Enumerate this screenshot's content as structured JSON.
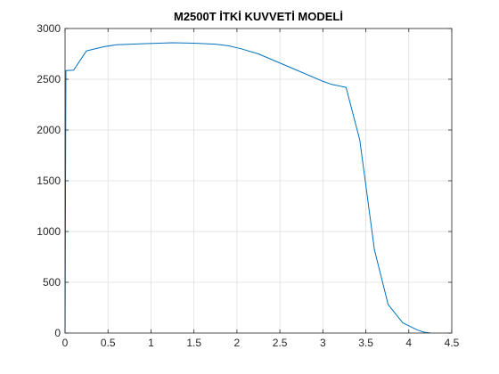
{
  "chart_data": {
    "type": "line",
    "title": "M2500T İTKİ KUVVETİ MODELİ",
    "xlabel": "",
    "ylabel": "",
    "xlim": [
      0,
      4.5
    ],
    "ylim": [
      0,
      3000
    ],
    "xticks": [
      0,
      0.5,
      1,
      1.5,
      2,
      2.5,
      3,
      3.5,
      4,
      4.5
    ],
    "xtick_labels": [
      "0",
      "0.5",
      "1",
      "1.5",
      "2",
      "2.5",
      "3",
      "3.5",
      "4",
      "4.5"
    ],
    "yticks": [
      0,
      500,
      1000,
      1500,
      2000,
      2500,
      3000
    ],
    "ytick_labels": [
      "0",
      "500",
      "1000",
      "1500",
      "2000",
      "2500",
      "3000"
    ],
    "grid": true,
    "series": [
      {
        "color": "#0072bd",
        "x": [
          0,
          0.01,
          0.02,
          0.1,
          0.25,
          0.45,
          0.6,
          0.9,
          1.25,
          1.5,
          1.75,
          1.9,
          2.05,
          2.25,
          2.5,
          2.75,
          3.0,
          3.1,
          3.27,
          3.43,
          3.6,
          3.76,
          3.93,
          4.1,
          4.17,
          4.25
        ],
        "y": [
          0,
          2585,
          2585,
          2590,
          2780,
          2820,
          2840,
          2850,
          2860,
          2855,
          2845,
          2830,
          2800,
          2750,
          2660,
          2570,
          2480,
          2450,
          2420,
          1900,
          820,
          280,
          100,
          30,
          10,
          0
        ]
      }
    ]
  }
}
